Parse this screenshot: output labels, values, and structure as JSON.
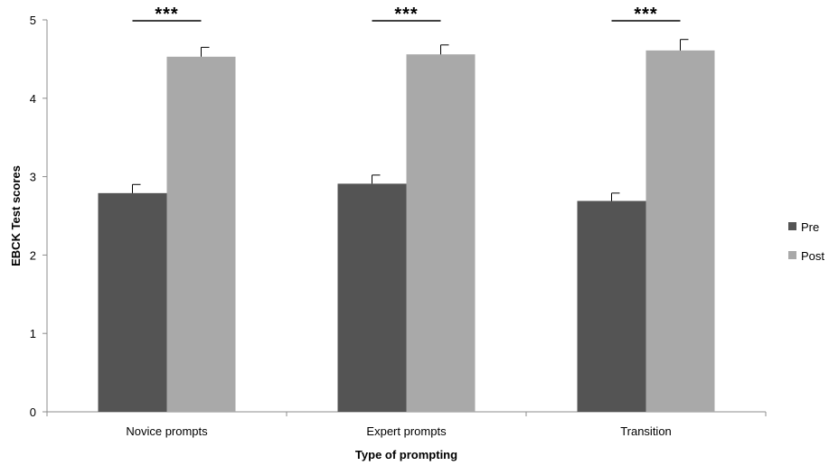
{
  "chart_data": {
    "type": "bar",
    "title": "",
    "xlabel": "Type of prompting",
    "ylabel": "EBCK Test scores",
    "categories": [
      "Novice prompts",
      "Expert prompts",
      "Transition"
    ],
    "series": [
      {
        "name": "Pre",
        "values": [
          2.79,
          2.91,
          2.69
        ],
        "errors": [
          0.11,
          0.11,
          0.1
        ],
        "color": "#545454"
      },
      {
        "name": "Post",
        "values": [
          4.53,
          4.56,
          4.61
        ],
        "errors": [
          0.12,
          0.12,
          0.14
        ],
        "color": "#a9a9a9"
      }
    ],
    "ylim": [
      0,
      5
    ],
    "yticks": [
      "0",
      "1",
      "2",
      "3",
      "4",
      "5"
    ],
    "grid": false,
    "legend_position": "right",
    "significance": [
      "***",
      "***",
      "***"
    ]
  }
}
